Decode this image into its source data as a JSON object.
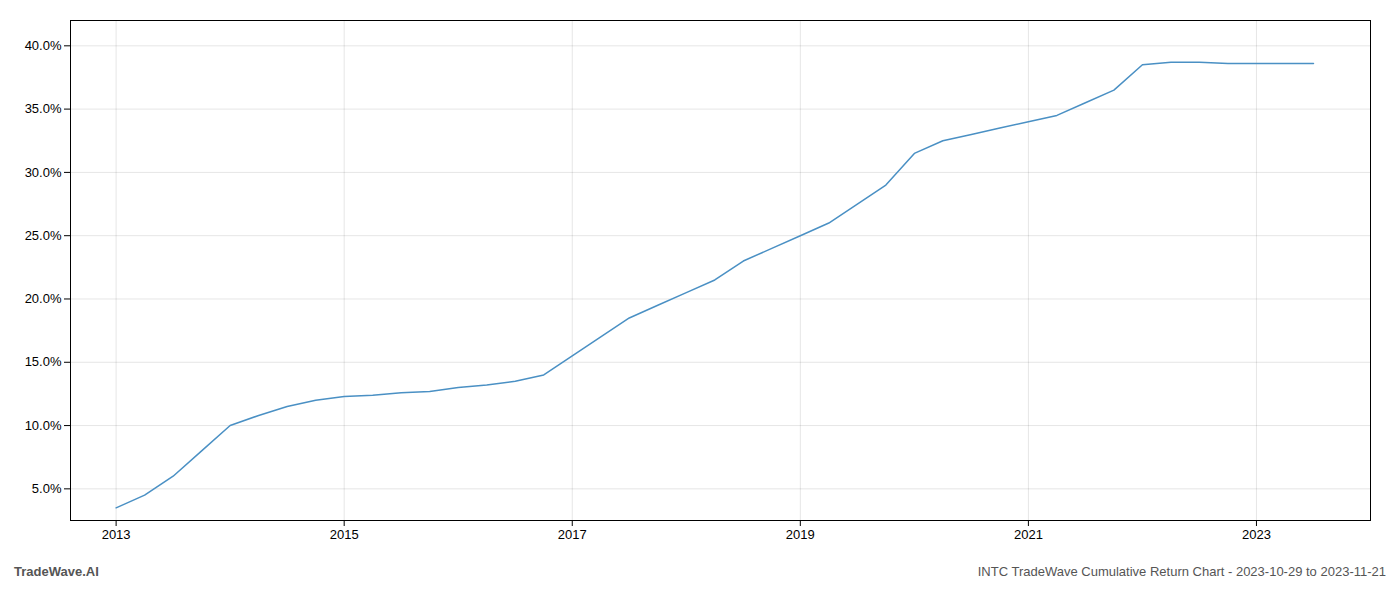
{
  "chart_data": {
    "type": "line",
    "annotations": [
      "TradeWave.AI",
      "INTC TradeWave Cumulative Return Chart - 2023-10-29 to 2023-11-21"
    ],
    "x": [
      2013.0,
      2013.25,
      2013.5,
      2013.75,
      2014.0,
      2014.25,
      2014.5,
      2014.75,
      2015.0,
      2015.25,
      2015.5,
      2015.75,
      2016.0,
      2016.25,
      2016.5,
      2016.75,
      2017.0,
      2017.25,
      2017.5,
      2017.75,
      2018.0,
      2018.25,
      2018.5,
      2018.75,
      2019.0,
      2019.25,
      2019.5,
      2019.75,
      2020.0,
      2020.25,
      2020.5,
      2020.75,
      2021.0,
      2021.25,
      2021.5,
      2021.75,
      2022.0,
      2022.25,
      2022.5,
      2022.75,
      2023.0,
      2023.5
    ],
    "values": [
      3.5,
      4.5,
      6.0,
      8.0,
      10.0,
      10.8,
      11.5,
      12.0,
      12.3,
      12.4,
      12.6,
      12.7,
      13.0,
      13.2,
      13.5,
      14.0,
      15.5,
      17.0,
      18.5,
      19.5,
      20.5,
      21.5,
      23.0,
      24.0,
      25.0,
      26.0,
      27.5,
      29.0,
      31.5,
      32.5,
      33.0,
      33.5,
      34.0,
      34.5,
      35.5,
      36.5,
      38.5,
      38.7,
      38.7,
      38.6,
      38.6,
      38.6
    ],
    "color": "#4a90c4",
    "xlim": [
      2012.6,
      2024.0
    ],
    "ylim": [
      2.5,
      42.0
    ],
    "xticks": [
      2013,
      2015,
      2017,
      2019,
      2021,
      2023
    ],
    "yticks": [
      {
        "value": 5.0,
        "label": "5.0%"
      },
      {
        "value": 10.0,
        "label": "10.0%"
      },
      {
        "value": 15.0,
        "label": "15.0%"
      },
      {
        "value": 20.0,
        "label": "20.0%"
      },
      {
        "value": 25.0,
        "label": "25.0%"
      },
      {
        "value": 30.0,
        "label": "30.0%"
      },
      {
        "value": 35.0,
        "label": "35.0%"
      },
      {
        "value": 40.0,
        "label": "40.0%"
      }
    ],
    "grid": true
  }
}
